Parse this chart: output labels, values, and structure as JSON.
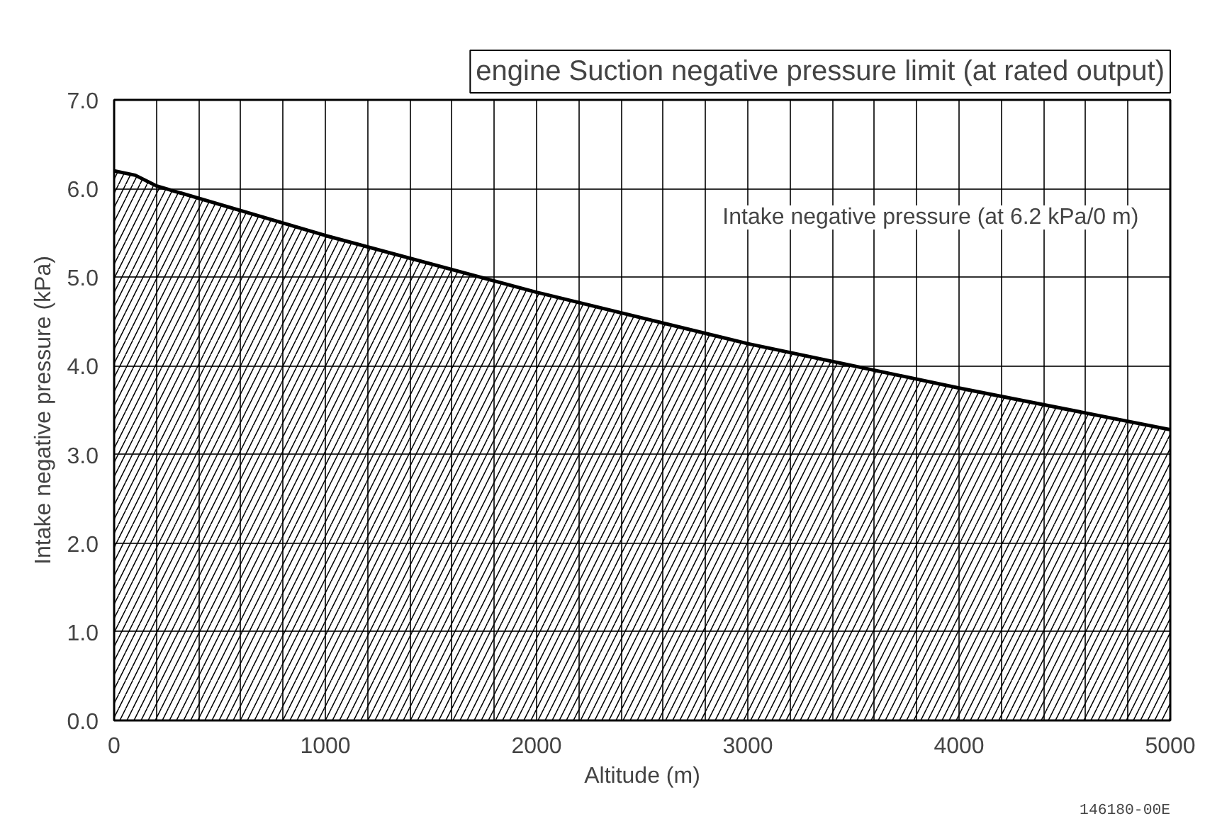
{
  "chart_data": {
    "type": "area",
    "title": "engine Suction negative pressure limit (at rated output)",
    "xlabel": "Altitude (m)",
    "ylabel": "Intake negative pressure (kPa)",
    "x": [
      0,
      100,
      200,
      1000,
      2000,
      3000,
      4000,
      5000
    ],
    "series": [
      {
        "name": "Intake negative pressure (at 6.2 kPa/0 m)",
        "color": "#000000",
        "values": [
          6.2,
          6.15,
          6.03,
          5.47,
          4.83,
          4.25,
          3.75,
          3.28
        ]
      }
    ],
    "xlim": [
      0,
      5000
    ],
    "ylim": [
      0,
      7
    ],
    "xticks": [
      0,
      {
        "value": 200,
        "label": null
      },
      {
        "value": 400,
        "label": null
      },
      {
        "value": 600,
        "label": null
      },
      {
        "value": 800,
        "label": null
      },
      1000,
      {
        "value": 1200,
        "label": null
      },
      {
        "value": 1400,
        "label": null
      },
      {
        "value": 1600,
        "label": null
      },
      {
        "value": 1800,
        "label": null
      },
      2000,
      {
        "value": 2200,
        "label": null
      },
      {
        "value": 2400,
        "label": null
      },
      {
        "value": 2600,
        "label": null
      },
      {
        "value": 2800,
        "label": null
      },
      3000,
      {
        "value": 3200,
        "label": null
      },
      {
        "value": 3400,
        "label": null
      },
      {
        "value": 3600,
        "label": null
      },
      {
        "value": 3800,
        "label": null
      },
      4000,
      {
        "value": 4200,
        "label": null
      },
      {
        "value": 4400,
        "label": null
      },
      {
        "value": 4600,
        "label": null
      },
      {
        "value": 4800,
        "label": null
      },
      5000
    ],
    "yticks": [
      {
        "value": 0,
        "label": "0.0"
      },
      {
        "value": 1,
        "label": "1.0"
      },
      {
        "value": 2,
        "label": "2.0"
      },
      {
        "value": 3,
        "label": "3.0"
      },
      {
        "value": 4,
        "label": "4.0"
      },
      {
        "value": 5,
        "label": "5.0"
      },
      {
        "value": 6,
        "label": "6.0"
      },
      {
        "value": 7,
        "label": "7.0"
      }
    ],
    "grid": true,
    "legend": "top right",
    "annotations": [
      "146180-00E"
    ]
  }
}
